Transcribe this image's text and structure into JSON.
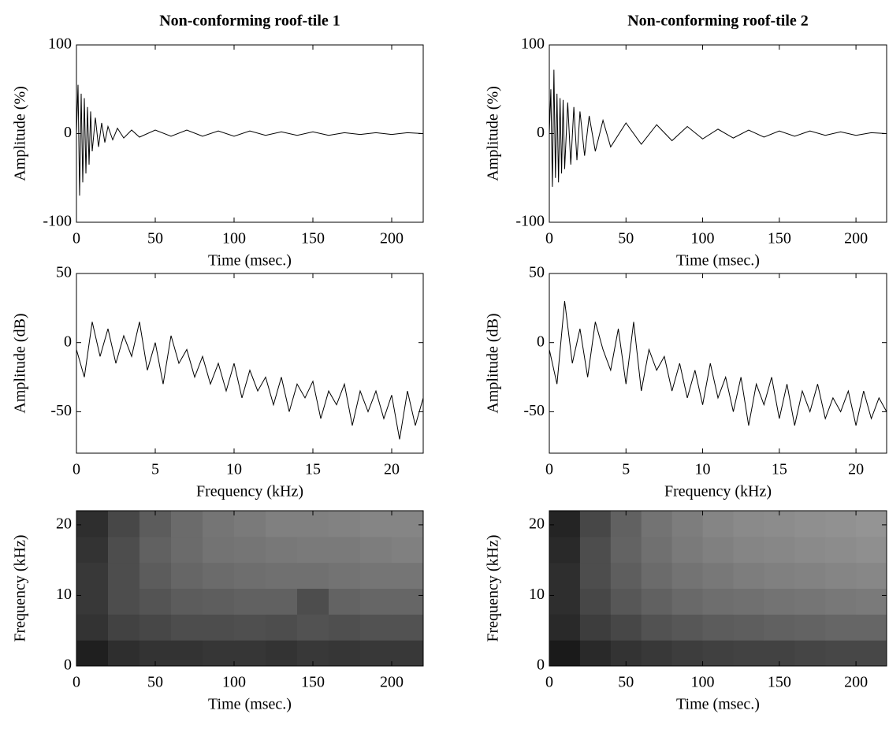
{
  "chart_data": [
    {
      "type": "line",
      "title": "Non-conforming roof-tile 1",
      "xlabel": "Time (msec.)",
      "ylabel": "Amplitude (%)",
      "color": "#000000",
      "xlim": [
        0,
        220
      ],
      "ylim": [
        -100,
        100
      ],
      "xticks": [
        0,
        50,
        100,
        150,
        200
      ],
      "yticks": [
        -100,
        0,
        100
      ],
      "x": [
        0,
        1,
        2,
        3,
        4,
        5,
        6,
        7,
        8,
        9,
        10,
        12,
        14,
        16,
        18,
        20,
        23,
        26,
        30,
        35,
        40,
        50,
        60,
        70,
        80,
        90,
        100,
        110,
        120,
        130,
        140,
        150,
        160,
        170,
        180,
        190,
        200,
        210,
        220
      ],
      "values": [
        0,
        55,
        -70,
        45,
        -55,
        40,
        -45,
        30,
        -35,
        25,
        -20,
        18,
        -15,
        12,
        -10,
        8,
        -7,
        6,
        -5,
        4,
        -4,
        4,
        -3,
        4,
        -3,
        3,
        -3,
        3,
        -2,
        2,
        -2,
        2,
        -2,
        1,
        -1,
        1,
        -1,
        1,
        0
      ]
    },
    {
      "type": "line",
      "xlabel": "Frequency (kHz)",
      "ylabel": "Amplitude (dB)",
      "color": "#000000",
      "xlim": [
        0,
        22
      ],
      "ylim": [
        -80,
        50
      ],
      "xticks": [
        0,
        5,
        10,
        15,
        20
      ],
      "yticks": [
        -50,
        0,
        50
      ],
      "x": [
        0,
        0.5,
        1,
        1.5,
        2,
        2.5,
        3,
        3.5,
        4,
        4.5,
        5,
        5.5,
        6,
        6.5,
        7,
        7.5,
        8,
        8.5,
        9,
        9.5,
        10,
        10.5,
        11,
        11.5,
        12,
        12.5,
        13,
        13.5,
        14,
        14.5,
        15,
        15.5,
        16,
        16.5,
        17,
        17.5,
        18,
        18.5,
        19,
        19.5,
        20,
        20.5,
        21,
        21.5,
        22
      ],
      "values": [
        -5,
        -25,
        15,
        -10,
        10,
        -15,
        5,
        -10,
        15,
        -20,
        0,
        -30,
        5,
        -15,
        -5,
        -25,
        -10,
        -30,
        -15,
        -35,
        -15,
        -40,
        -20,
        -35,
        -25,
        -45,
        -25,
        -50,
        -30,
        -40,
        -28,
        -55,
        -35,
        -45,
        -30,
        -60,
        -35,
        -50,
        -35,
        -55,
        -38,
        -70,
        -35,
        -60,
        -40
      ]
    },
    {
      "type": "heatmap",
      "xlabel": "Time (msec.)",
      "ylabel": "Frequency (kHz)",
      "colormap": "gray",
      "xlim": [
        0,
        220
      ],
      "ylim": [
        0,
        22
      ],
      "xticks": [
        0,
        50,
        100,
        150,
        200
      ],
      "yticks": [
        0,
        10,
        20
      ],
      "z": [
        [
          0.12,
          0.18,
          0.2,
          0.2,
          0.21,
          0.21,
          0.2,
          0.22,
          0.21,
          0.22,
          0.22
        ],
        [
          0.2,
          0.26,
          0.28,
          0.3,
          0.3,
          0.31,
          0.3,
          0.32,
          0.31,
          0.32,
          0.32
        ],
        [
          0.22,
          0.3,
          0.33,
          0.36,
          0.37,
          0.38,
          0.38,
          0.3,
          0.39,
          0.4,
          0.4
        ],
        [
          0.22,
          0.3,
          0.36,
          0.4,
          0.42,
          0.43,
          0.44,
          0.44,
          0.45,
          0.46,
          0.46
        ],
        [
          0.2,
          0.3,
          0.38,
          0.42,
          0.45,
          0.46,
          0.47,
          0.48,
          0.48,
          0.49,
          0.5
        ],
        [
          0.18,
          0.28,
          0.36,
          0.42,
          0.46,
          0.48,
          0.5,
          0.5,
          0.51,
          0.52,
          0.52
        ]
      ]
    },
    {
      "type": "line",
      "title": "Non-conforming roof-tile 2",
      "xlabel": "Time (msec.)",
      "ylabel": "Amplitude (%)",
      "color": "#000000",
      "xlim": [
        0,
        220
      ],
      "ylim": [
        -100,
        100
      ],
      "xticks": [
        0,
        50,
        100,
        150,
        200
      ],
      "yticks": [
        -100,
        0,
        100
      ],
      "x": [
        0,
        1,
        2,
        3,
        4,
        5,
        6,
        7,
        8,
        9,
        10,
        12,
        14,
        16,
        18,
        20,
        23,
        26,
        30,
        35,
        40,
        50,
        60,
        70,
        80,
        90,
        100,
        110,
        120,
        130,
        140,
        150,
        160,
        170,
        180,
        190,
        200,
        210,
        220
      ],
      "values": [
        0,
        50,
        -60,
        72,
        -50,
        45,
        -55,
        40,
        -45,
        38,
        -40,
        35,
        -35,
        30,
        -30,
        25,
        -25,
        20,
        -20,
        15,
        -15,
        12,
        -12,
        10,
        -8,
        8,
        -6,
        5,
        -5,
        4,
        -4,
        3,
        -3,
        3,
        -2,
        2,
        -2,
        1,
        0
      ]
    },
    {
      "type": "line",
      "xlabel": "Frequency (kHz)",
      "ylabel": "Amplitude (dB)",
      "color": "#000000",
      "xlim": [
        0,
        22
      ],
      "ylim": [
        -80,
        50
      ],
      "xticks": [
        0,
        5,
        10,
        15,
        20
      ],
      "yticks": [
        -50,
        0,
        50
      ],
      "x": [
        0,
        0.5,
        1,
        1.5,
        2,
        2.5,
        3,
        3.5,
        4,
        4.5,
        5,
        5.5,
        6,
        6.5,
        7,
        7.5,
        8,
        8.5,
        9,
        9.5,
        10,
        10.5,
        11,
        11.5,
        12,
        12.5,
        13,
        13.5,
        14,
        14.5,
        15,
        15.5,
        16,
        16.5,
        17,
        17.5,
        18,
        18.5,
        19,
        19.5,
        20,
        20.5,
        21,
        21.5,
        22
      ],
      "values": [
        -5,
        -30,
        30,
        -15,
        10,
        -25,
        15,
        -5,
        -20,
        10,
        -30,
        15,
        -35,
        -5,
        -20,
        -10,
        -35,
        -15,
        -40,
        -20,
        -45,
        -15,
        -40,
        -25,
        -50,
        -25,
        -60,
        -30,
        -45,
        -25,
        -55,
        -30,
        -60,
        -35,
        -50,
        -30,
        -55,
        -40,
        -50,
        -35,
        -60,
        -35,
        -55,
        -40,
        -50
      ]
    },
    {
      "type": "heatmap",
      "xlabel": "Time (msec.)",
      "ylabel": "Frequency (kHz)",
      "colormap": "gray",
      "xlim": [
        0,
        220
      ],
      "ylim": [
        0,
        22
      ],
      "xticks": [
        0,
        50,
        100,
        150,
        200
      ],
      "yticks": [
        0,
        10,
        20
      ],
      "z": [
        [
          0.1,
          0.16,
          0.2,
          0.22,
          0.24,
          0.25,
          0.26,
          0.26,
          0.27,
          0.28,
          0.28
        ],
        [
          0.16,
          0.24,
          0.28,
          0.32,
          0.34,
          0.36,
          0.37,
          0.38,
          0.39,
          0.4,
          0.4
        ],
        [
          0.18,
          0.28,
          0.34,
          0.38,
          0.41,
          0.43,
          0.44,
          0.45,
          0.46,
          0.47,
          0.48
        ],
        [
          0.18,
          0.3,
          0.37,
          0.42,
          0.45,
          0.47,
          0.49,
          0.5,
          0.51,
          0.52,
          0.53
        ],
        [
          0.16,
          0.3,
          0.39,
          0.44,
          0.48,
          0.5,
          0.52,
          0.53,
          0.54,
          0.55,
          0.56
        ],
        [
          0.14,
          0.28,
          0.38,
          0.45,
          0.49,
          0.52,
          0.54,
          0.55,
          0.56,
          0.57,
          0.58
        ]
      ]
    }
  ]
}
